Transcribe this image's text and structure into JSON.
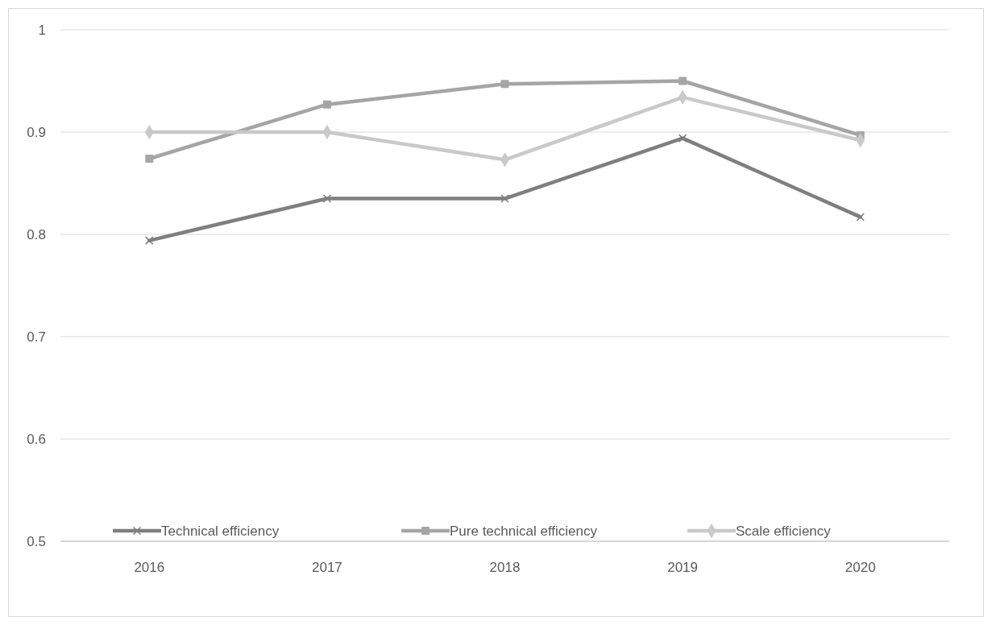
{
  "chart_data": {
    "type": "line",
    "categories": [
      "2016",
      "2017",
      "2018",
      "2019",
      "2020"
    ],
    "series": [
      {
        "name": "Technical efficiency",
        "color": "#7f7f7f",
        "marker": "cross",
        "values": [
          0.794,
          0.835,
          0.835,
          0.894,
          0.817
        ]
      },
      {
        "name": "Pure technical efficiency",
        "color": "#a5a5a5",
        "marker": "square",
        "values": [
          0.874,
          0.927,
          0.947,
          0.95,
          0.897
        ]
      },
      {
        "name": "Scale efficiency",
        "color": "#c9c9c9",
        "marker": "diamond",
        "values": [
          0.9,
          0.9,
          0.873,
          0.934,
          0.892
        ]
      }
    ],
    "ylim": [
      0.5,
      1
    ],
    "yticks": [
      0.5,
      0.6,
      0.7,
      0.8,
      0.9,
      1
    ],
    "grid": "y",
    "legend": "bottom",
    "line_style": "solid"
  }
}
